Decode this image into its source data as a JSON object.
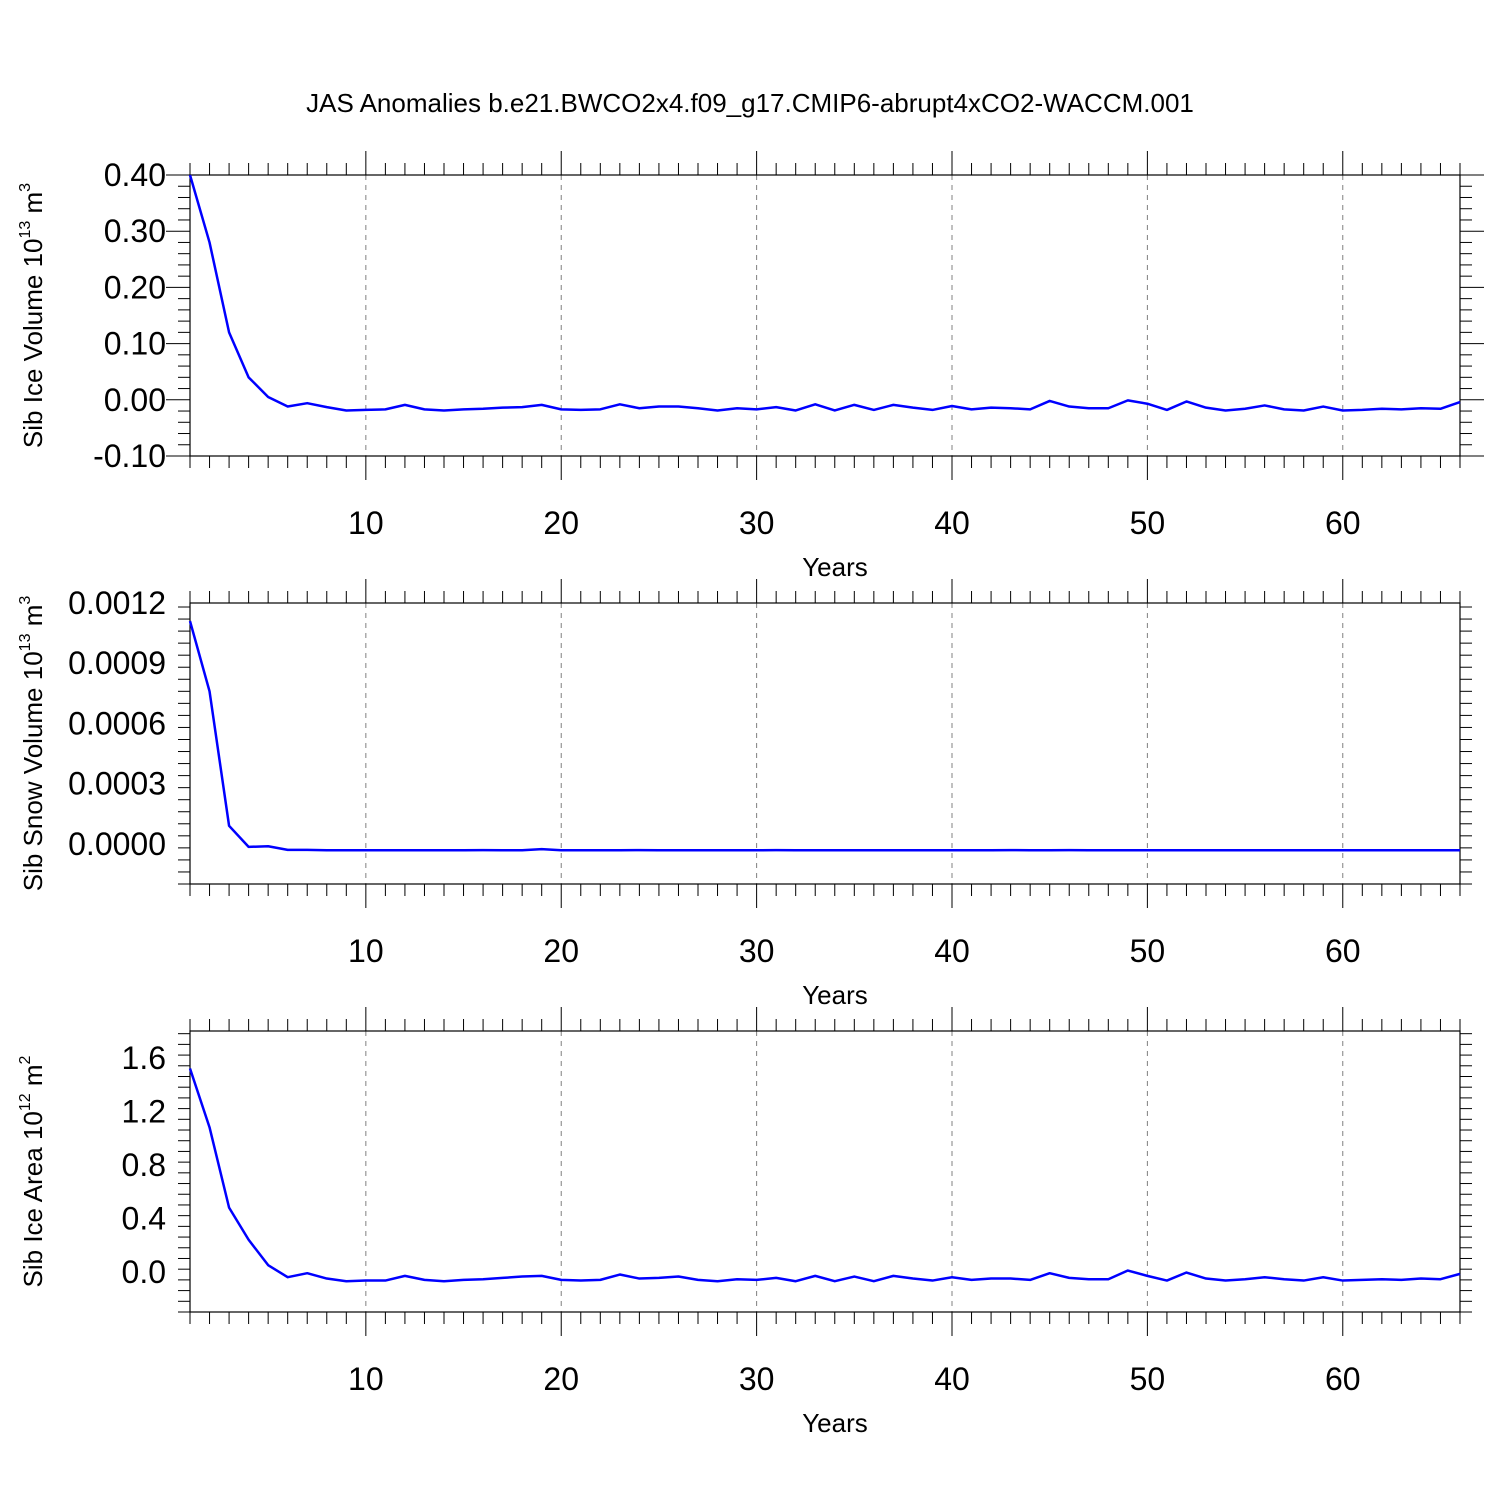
{
  "title": "JAS Anomalies b.e21.BWCO2x4.f09_g17.CMIP6-abrupt4xCO2-WACCM.001",
  "colors": {
    "line": "#0000ff",
    "axis": "#000000",
    "grid": "#808080"
  },
  "chart_data": [
    {
      "type": "line",
      "xlabel": "Years",
      "ylabel": "Sib Ice Volume 10",
      "ylabel_sup": "13",
      "ylabel_unit": " m",
      "ylabel_unit_sup": "3",
      "xlim": [
        1,
        66
      ],
      "ylim": [
        -0.1,
        0.4
      ],
      "xticks": [
        10,
        20,
        30,
        40,
        50,
        60
      ],
      "xtick_labels": [
        "10",
        "20",
        "30",
        "40",
        "50",
        "60"
      ],
      "yticks": [
        -0.1,
        0.0,
        0.1,
        0.2,
        0.3,
        0.4
      ],
      "ytick_labels": [
        "-0.10",
        "0.00",
        "0.10",
        "0.20",
        "0.30",
        "0.40"
      ],
      "grid": "vertical-dashed",
      "series": [
        {
          "x": [
            1,
            2,
            3,
            4,
            5,
            6,
            7,
            8,
            9,
            10,
            11,
            12,
            13,
            14,
            15,
            16,
            17,
            18,
            19,
            20,
            21,
            22,
            23,
            24,
            25,
            26,
            27,
            28,
            29,
            30,
            31,
            32,
            33,
            34,
            35,
            36,
            37,
            38,
            39,
            40,
            41,
            42,
            43,
            44,
            45,
            46,
            47,
            48,
            49,
            50,
            51,
            52,
            53,
            54,
            55,
            56,
            57,
            58,
            59,
            60,
            61,
            62,
            63,
            64,
            65,
            66
          ],
          "values": [
            0.4,
            0.28,
            0.12,
            0.04,
            0.005,
            -0.012,
            -0.006,
            -0.013,
            -0.019,
            -0.018,
            -0.017,
            -0.009,
            -0.017,
            -0.019,
            -0.017,
            -0.016,
            -0.014,
            -0.013,
            -0.009,
            -0.017,
            -0.018,
            -0.017,
            -0.008,
            -0.015,
            -0.012,
            -0.012,
            -0.015,
            -0.019,
            -0.015,
            -0.017,
            -0.013,
            -0.019,
            -0.008,
            -0.019,
            -0.009,
            -0.018,
            -0.009,
            -0.014,
            -0.018,
            -0.011,
            -0.017,
            -0.014,
            -0.015,
            -0.017,
            -0.002,
            -0.012,
            -0.015,
            -0.015,
            -0.001,
            -0.007,
            -0.018,
            -0.003,
            -0.014,
            -0.019,
            -0.016,
            -0.01,
            -0.017,
            -0.019,
            -0.012,
            -0.019,
            -0.018,
            -0.016,
            -0.017,
            -0.015,
            -0.016,
            -0.004
          ]
        }
      ]
    },
    {
      "type": "line",
      "xlabel": "Years",
      "ylabel": "Sib Snow Volume 10",
      "ylabel_sup": "13",
      "ylabel_unit": " m",
      "ylabel_unit_sup": "3",
      "xlim": [
        1,
        66
      ],
      "ylim": [
        -0.0002,
        0.0012
      ],
      "xticks": [
        10,
        20,
        30,
        40,
        50,
        60
      ],
      "xtick_labels": [
        "10",
        "20",
        "30",
        "40",
        "50",
        "60"
      ],
      "yticks": [
        0.0,
        0.0003,
        0.0006,
        0.0009,
        0.0012
      ],
      "ytick_labels": [
        "0.0000",
        "0.0003",
        "0.0006",
        "0.0009",
        "0.0012"
      ],
      "grid": "vertical-dashed",
      "series": [
        {
          "x": [
            1,
            2,
            3,
            4,
            5,
            6,
            7,
            8,
            9,
            10,
            11,
            12,
            13,
            14,
            15,
            16,
            17,
            18,
            19,
            20,
            21,
            22,
            23,
            24,
            25,
            26,
            27,
            28,
            29,
            30,
            31,
            32,
            33,
            34,
            35,
            36,
            37,
            38,
            39,
            40,
            41,
            42,
            43,
            44,
            45,
            46,
            47,
            48,
            49,
            50,
            51,
            52,
            53,
            54,
            55,
            56,
            57,
            58,
            59,
            60,
            61,
            62,
            63,
            64,
            65,
            66
          ],
          "values": [
            0.00111,
            0.00076,
            9e-05,
            -1.5e-05,
            -1.2e-05,
            -3e-05,
            -3e-05,
            -3.2e-05,
            -3.2e-05,
            -3.2e-05,
            -3.2e-05,
            -3.2e-05,
            -3.2e-05,
            -3.2e-05,
            -3.2e-05,
            -3.1e-05,
            -3.2e-05,
            -3.2e-05,
            -2.6e-05,
            -3.2e-05,
            -3.2e-05,
            -3.2e-05,
            -3.2e-05,
            -3.1e-05,
            -3.2e-05,
            -3.2e-05,
            -3.2e-05,
            -3.2e-05,
            -3.2e-05,
            -3.2e-05,
            -3.1e-05,
            -3.2e-05,
            -3.2e-05,
            -3.2e-05,
            -3.2e-05,
            -3.2e-05,
            -3.2e-05,
            -3.2e-05,
            -3.2e-05,
            -3.2e-05,
            -3.2e-05,
            -3.2e-05,
            -3.1e-05,
            -3.2e-05,
            -3.2e-05,
            -3.1e-05,
            -3.2e-05,
            -3.2e-05,
            -3.2e-05,
            -3.2e-05,
            -3.2e-05,
            -3.2e-05,
            -3.2e-05,
            -3.2e-05,
            -3.2e-05,
            -3.2e-05,
            -3.2e-05,
            -3.2e-05,
            -3.2e-05,
            -3.2e-05,
            -3.2e-05,
            -3.2e-05,
            -3.2e-05,
            -3.2e-05,
            -3.2e-05,
            -3.2e-05
          ]
        }
      ]
    },
    {
      "type": "line",
      "xlabel": "Years",
      "ylabel": "Sib Ice Area 10",
      "ylabel_sup": "12",
      "ylabel_unit": " m",
      "ylabel_unit_sup": "2",
      "xlim": [
        1,
        66
      ],
      "ylim": [
        -0.3,
        1.8
      ],
      "xticks": [
        10,
        20,
        30,
        40,
        50,
        60
      ],
      "xtick_labels": [
        "10",
        "20",
        "30",
        "40",
        "50",
        "60"
      ],
      "yticks": [
        0.0,
        0.4,
        0.8,
        1.2,
        1.6
      ],
      "ytick_labels": [
        "0.0",
        "0.4",
        "0.8",
        "1.2",
        "1.6"
      ],
      "grid": "vertical-dashed",
      "series": [
        {
          "x": [
            1,
            2,
            3,
            4,
            5,
            6,
            7,
            8,
            9,
            10,
            11,
            12,
            13,
            14,
            15,
            16,
            17,
            18,
            19,
            20,
            21,
            22,
            23,
            24,
            25,
            26,
            27,
            28,
            29,
            30,
            31,
            32,
            33,
            34,
            35,
            36,
            37,
            38,
            39,
            40,
            41,
            42,
            43,
            44,
            45,
            46,
            47,
            48,
            49,
            50,
            51,
            52,
            53,
            54,
            55,
            56,
            57,
            58,
            59,
            60,
            61,
            62,
            63,
            64,
            65,
            66
          ],
          "values": [
            1.52,
            1.08,
            0.48,
            0.24,
            0.05,
            -0.04,
            -0.01,
            -0.05,
            -0.07,
            -0.065,
            -0.065,
            -0.03,
            -0.06,
            -0.07,
            -0.06,
            -0.055,
            -0.045,
            -0.035,
            -0.03,
            -0.06,
            -0.065,
            -0.06,
            -0.02,
            -0.05,
            -0.045,
            -0.035,
            -0.06,
            -0.07,
            -0.055,
            -0.06,
            -0.045,
            -0.07,
            -0.03,
            -0.07,
            -0.035,
            -0.07,
            -0.03,
            -0.05,
            -0.065,
            -0.04,
            -0.06,
            -0.05,
            -0.05,
            -0.06,
            -0.01,
            -0.045,
            -0.055,
            -0.055,
            0.01,
            -0.03,
            -0.065,
            -0.005,
            -0.05,
            -0.065,
            -0.055,
            -0.04,
            -0.055,
            -0.065,
            -0.04,
            -0.065,
            -0.06,
            -0.055,
            -0.06,
            -0.05,
            -0.055,
            -0.015
          ]
        }
      ]
    }
  ]
}
